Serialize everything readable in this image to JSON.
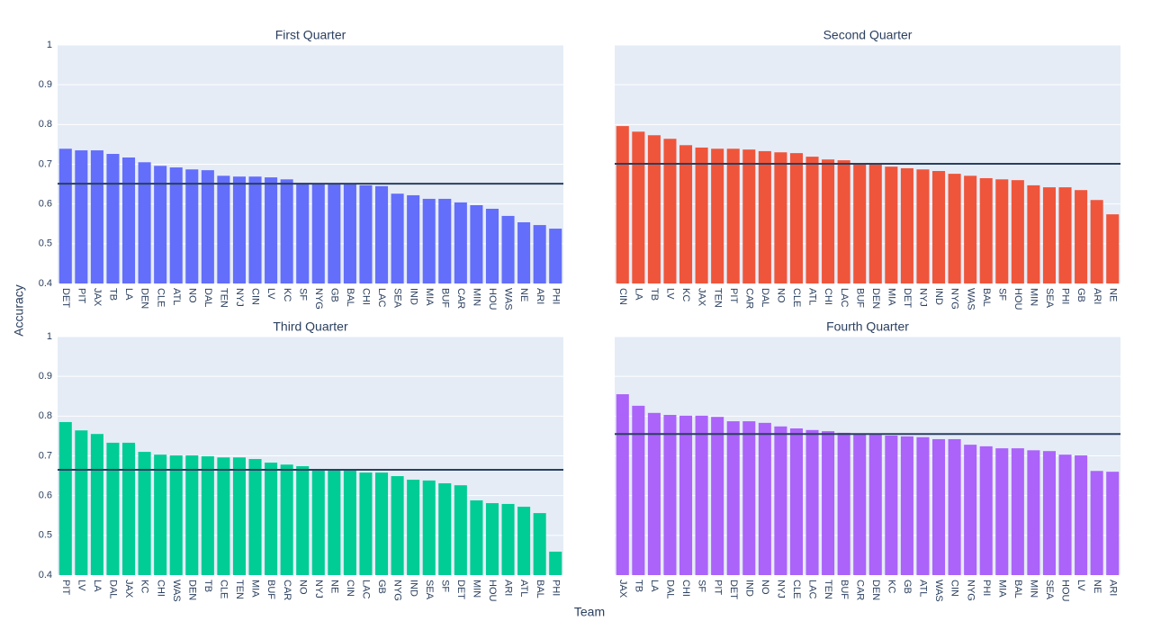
{
  "x_label": "Team",
  "y_label": "Accuracy",
  "chart_data": [
    {
      "type": "bar",
      "title": "First Quarter",
      "color": "#636efa",
      "ylim": [
        0.4,
        1
      ],
      "yticks": [
        0.4,
        0.5,
        0.6,
        0.7,
        0.8,
        0.9,
        1
      ],
      "grid": true,
      "show_yticklabels": true,
      "reference_line": 0.651,
      "categories": [
        "DET",
        "PIT",
        "JAX",
        "TB",
        "LA",
        "DEN",
        "CLE",
        "ATL",
        "NO",
        "DAL",
        "TEN",
        "NYJ",
        "CIN",
        "LV",
        "KC",
        "SF",
        "NYG",
        "GB",
        "BAL",
        "CHI",
        "LAC",
        "SEA",
        "IND",
        "MIA",
        "BUF",
        "CAR",
        "MIN",
        "HOU",
        "WAS",
        "NE",
        "ARI",
        "PHI"
      ],
      "values": [
        0.739,
        0.735,
        0.735,
        0.726,
        0.717,
        0.705,
        0.696,
        0.692,
        0.687,
        0.685,
        0.671,
        0.669,
        0.669,
        0.667,
        0.662,
        0.653,
        0.651,
        0.649,
        0.649,
        0.647,
        0.645,
        0.626,
        0.622,
        0.613,
        0.613,
        0.604,
        0.597,
        0.588,
        0.57,
        0.554,
        0.547,
        0.538
      ]
    },
    {
      "type": "bar",
      "title": "Second Quarter",
      "color": "#ef553b",
      "ylim": [
        0.4,
        1
      ],
      "yticks": [
        0.4,
        0.5,
        0.6,
        0.7,
        0.8,
        0.9,
        1
      ],
      "grid": true,
      "show_yticklabels": false,
      "reference_line": 0.701,
      "categories": [
        "CIN",
        "LA",
        "TB",
        "LV",
        "KC",
        "JAX",
        "TEN",
        "PIT",
        "CAR",
        "DAL",
        "NO",
        "CLE",
        "ATL",
        "CHI",
        "LAC",
        "BUF",
        "DEN",
        "MIA",
        "DET",
        "NYJ",
        "IND",
        "NYG",
        "WAS",
        "BAL",
        "SF",
        "HOU",
        "MIN",
        "SEA",
        "PHI",
        "GB",
        "ARI",
        "NE"
      ],
      "values": [
        0.796,
        0.782,
        0.773,
        0.764,
        0.748,
        0.742,
        0.739,
        0.739,
        0.737,
        0.733,
        0.73,
        0.728,
        0.719,
        0.712,
        0.71,
        0.701,
        0.701,
        0.694,
        0.69,
        0.687,
        0.683,
        0.676,
        0.671,
        0.665,
        0.662,
        0.66,
        0.647,
        0.642,
        0.642,
        0.635,
        0.61,
        0.574
      ]
    },
    {
      "type": "bar",
      "title": "Third Quarter",
      "color": "#00cc96",
      "ylim": [
        0.4,
        1
      ],
      "yticks": [
        0.4,
        0.5,
        0.6,
        0.7,
        0.8,
        0.9,
        1
      ],
      "grid": true,
      "show_yticklabels": true,
      "reference_line": 0.665,
      "categories": [
        "PIT",
        "LV",
        "LA",
        "DAL",
        "JAX",
        "KC",
        "CHI",
        "WAS",
        "DEN",
        "TB",
        "CLE",
        "TEN",
        "MIA",
        "BUF",
        "CAR",
        "NO",
        "NYJ",
        "NE",
        "CIN",
        "LAC",
        "GB",
        "NYG",
        "IND",
        "SEA",
        "SF",
        "DET",
        "MIN",
        "HOU",
        "ARI",
        "ATL",
        "BAL",
        "PHI"
      ],
      "values": [
        0.785,
        0.764,
        0.755,
        0.733,
        0.733,
        0.71,
        0.703,
        0.701,
        0.701,
        0.699,
        0.696,
        0.696,
        0.692,
        0.683,
        0.678,
        0.674,
        0.667,
        0.665,
        0.665,
        0.658,
        0.658,
        0.649,
        0.64,
        0.638,
        0.631,
        0.626,
        0.588,
        0.581,
        0.579,
        0.572,
        0.556,
        0.459
      ]
    },
    {
      "type": "bar",
      "title": "Fourth Quarter",
      "color": "#ab63fa",
      "ylim": [
        0.4,
        1
      ],
      "yticks": [
        0.4,
        0.5,
        0.6,
        0.7,
        0.8,
        0.9,
        1
      ],
      "grid": true,
      "show_yticklabels": false,
      "reference_line": 0.755,
      "categories": [
        "JAX",
        "TB",
        "LA",
        "DAL",
        "CHI",
        "SF",
        "PIT",
        "DET",
        "IND",
        "NO",
        "NYJ",
        "CLE",
        "LAC",
        "TEN",
        "BUF",
        "CAR",
        "DEN",
        "KC",
        "GB",
        "ATL",
        "WAS",
        "CIN",
        "NYG",
        "PHI",
        "MIA",
        "BAL",
        "MIN",
        "SEA",
        "HOU",
        "LV",
        "NE",
        "ARI"
      ],
      "values": [
        0.855,
        0.826,
        0.808,
        0.803,
        0.801,
        0.801,
        0.798,
        0.787,
        0.787,
        0.783,
        0.774,
        0.769,
        0.765,
        0.762,
        0.758,
        0.755,
        0.753,
        0.751,
        0.749,
        0.747,
        0.742,
        0.742,
        0.728,
        0.724,
        0.719,
        0.719,
        0.714,
        0.712,
        0.703,
        0.701,
        0.662,
        0.66
      ]
    }
  ]
}
